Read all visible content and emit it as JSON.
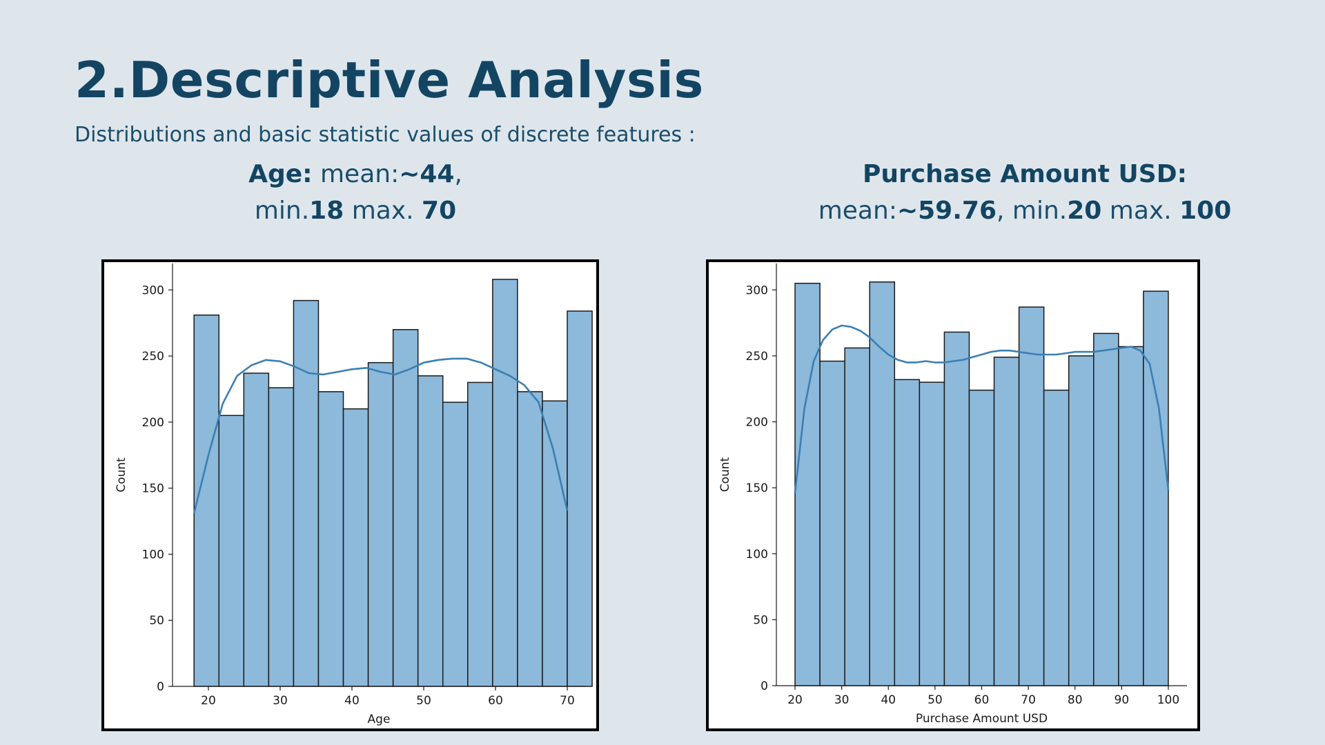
{
  "slide": {
    "title": "2.Descriptive Analysis",
    "subtitle": "Distributions and basic statistic values of discrete features :"
  },
  "stats": {
    "age": {
      "name": "Age:",
      "mean_label": " mean:",
      "mean": "~44",
      "comma": ",",
      "min_label": "min.",
      "min": "18",
      "max_label": " max. ",
      "max": "70"
    },
    "purchase": {
      "name": "Purchase Amount USD:",
      "mean_label": "mean:",
      "mean": "~59.76",
      "comma": ", ",
      "min_label": "min.",
      "min": "20",
      "max_label": " max. ",
      "max": "100"
    }
  },
  "colors": {
    "bar_fill": "#8db9da",
    "bar_edge": "#1a1a1a",
    "kde_line": "#3a7fb4"
  },
  "chart_data": [
    {
      "type": "bar",
      "subtype": "histogram-with-kde",
      "xlabel": "Age",
      "ylabel": "Count",
      "xlim": [
        15,
        72.5
      ],
      "ylim": [
        0,
        320
      ],
      "xticks": [
        20,
        30,
        40,
        50,
        60,
        70
      ],
      "yticks": [
        0,
        50,
        100,
        150,
        200,
        250,
        300
      ],
      "bin_start": 18,
      "bin_width": 3.4667,
      "values": [
        281,
        205,
        237,
        226,
        292,
        223,
        210,
        245,
        270,
        235,
        215,
        230,
        308,
        223,
        216,
        284
      ],
      "kde": {
        "x": [
          18,
          20,
          22,
          24,
          26,
          28,
          30,
          32,
          34,
          36,
          38,
          40,
          42,
          44,
          46,
          48,
          50,
          52,
          54,
          56,
          58,
          60,
          62,
          64,
          66,
          68,
          70
        ],
        "y": [
          131,
          175,
          214,
          235,
          243,
          247,
          246,
          242,
          237,
          236,
          238,
          240,
          241,
          238,
          236,
          240,
          245,
          247,
          248,
          248,
          245,
          240,
          235,
          228,
          215,
          180,
          133
        ]
      }
    },
    {
      "type": "bar",
      "subtype": "histogram-with-kde",
      "xlabel": "Purchase Amount USD",
      "ylabel": "Count",
      "xlim": [
        16,
        104
      ],
      "ylim": [
        0,
        320
      ],
      "xticks": [
        20,
        30,
        40,
        50,
        60,
        70,
        80,
        90,
        100
      ],
      "yticks": [
        0,
        50,
        100,
        150,
        200,
        250,
        300
      ],
      "bin_start": 20,
      "bin_width": 5.3333,
      "values": [
        305,
        246,
        256,
        306,
        232,
        230,
        268,
        224,
        249,
        287,
        224,
        250,
        267,
        257,
        299
      ],
      "kde": {
        "x": [
          20,
          22,
          24,
          26,
          28,
          30,
          32,
          34,
          36,
          38,
          40,
          42,
          44,
          46,
          48,
          50,
          52,
          54,
          56,
          58,
          60,
          62,
          64,
          66,
          68,
          70,
          72,
          74,
          76,
          78,
          80,
          82,
          84,
          86,
          88,
          90,
          92,
          94,
          96,
          98,
          100
        ],
        "y": [
          146,
          210,
          246,
          262,
          270,
          273,
          272,
          269,
          264,
          257,
          251,
          247,
          245,
          245,
          246,
          245,
          245,
          246,
          247,
          249,
          251,
          253,
          254,
          254,
          253,
          252,
          251,
          251,
          251,
          252,
          253,
          253,
          253,
          254,
          255,
          256,
          257,
          254,
          244,
          210,
          148
        ]
      }
    }
  ]
}
